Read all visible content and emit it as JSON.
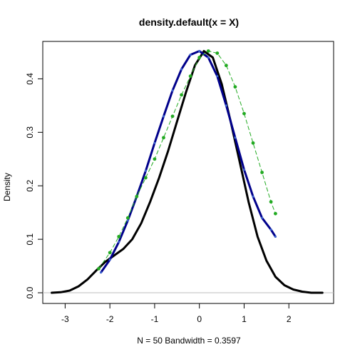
{
  "chart_data": {
    "type": "line",
    "title": "density.default(x = X)",
    "xlabel": "N = 50   Bandwidth = 0.3597",
    "ylabel": "Density",
    "xlim": [
      -3.5,
      3.0
    ],
    "ylim": [
      -0.02,
      0.47
    ],
    "x_ticks": [
      -3,
      -2,
      -1,
      0,
      1,
      2
    ],
    "x_tick_labels": [
      "-3",
      "-2",
      "-1",
      "0",
      "1",
      "2"
    ],
    "y_ticks": [
      0.0,
      0.1,
      0.2,
      0.3,
      0.4
    ],
    "y_tick_labels": [
      "0.0",
      "0.1",
      "0.2",
      "0.3",
      "0.4"
    ],
    "reference_line_y": 0,
    "grid": false,
    "series": [
      {
        "style": "solid-thick",
        "color": "#000000",
        "x": [
          -3.3,
          -3.1,
          -2.9,
          -2.7,
          -2.5,
          -2.3,
          -2.1,
          -1.9,
          -1.7,
          -1.5,
          -1.3,
          -1.1,
          -0.9,
          -0.7,
          -0.5,
          -0.3,
          -0.1,
          0.1,
          0.3,
          0.5,
          0.7,
          0.9,
          1.1,
          1.3,
          1.5,
          1.7,
          1.9,
          2.1,
          2.3,
          2.5,
          2.7,
          2.75
        ],
        "y": [
          0.0,
          0.001,
          0.004,
          0.012,
          0.025,
          0.042,
          0.058,
          0.07,
          0.082,
          0.1,
          0.13,
          0.17,
          0.215,
          0.265,
          0.32,
          0.375,
          0.425,
          0.452,
          0.44,
          0.39,
          0.32,
          0.245,
          0.17,
          0.105,
          0.06,
          0.03,
          0.014,
          0.006,
          0.002,
          0.0,
          0.0,
          0.0
        ]
      },
      {
        "style": "solid-blue",
        "color": "#00008b",
        "x": [
          -2.2,
          -2.0,
          -1.8,
          -1.6,
          -1.4,
          -1.2,
          -1.0,
          -0.8,
          -0.6,
          -0.4,
          -0.2,
          0.0,
          0.2,
          0.4,
          0.6,
          0.8,
          1.0,
          1.2,
          1.4,
          1.6,
          1.7
        ],
        "y": [
          0.038,
          0.062,
          0.095,
          0.135,
          0.18,
          0.228,
          0.28,
          0.33,
          0.378,
          0.418,
          0.445,
          0.452,
          0.44,
          0.405,
          0.35,
          0.29,
          0.23,
          0.18,
          0.14,
          0.118,
          0.105
        ]
      },
      {
        "style": "dotted-green",
        "color": "#22aa22",
        "x": [
          -2.25,
          -2.0,
          -1.8,
          -1.6,
          -1.4,
          -1.2,
          -1.0,
          -0.8,
          -0.6,
          -0.4,
          -0.2,
          0.0,
          0.2,
          0.4,
          0.6,
          0.8,
          1.0,
          1.2,
          1.4,
          1.6,
          1.7
        ],
        "y": [
          0.045,
          0.075,
          0.105,
          0.14,
          0.18,
          0.215,
          0.25,
          0.29,
          0.33,
          0.37,
          0.405,
          0.44,
          0.452,
          0.448,
          0.425,
          0.385,
          0.335,
          0.28,
          0.225,
          0.17,
          0.148
        ]
      }
    ]
  }
}
